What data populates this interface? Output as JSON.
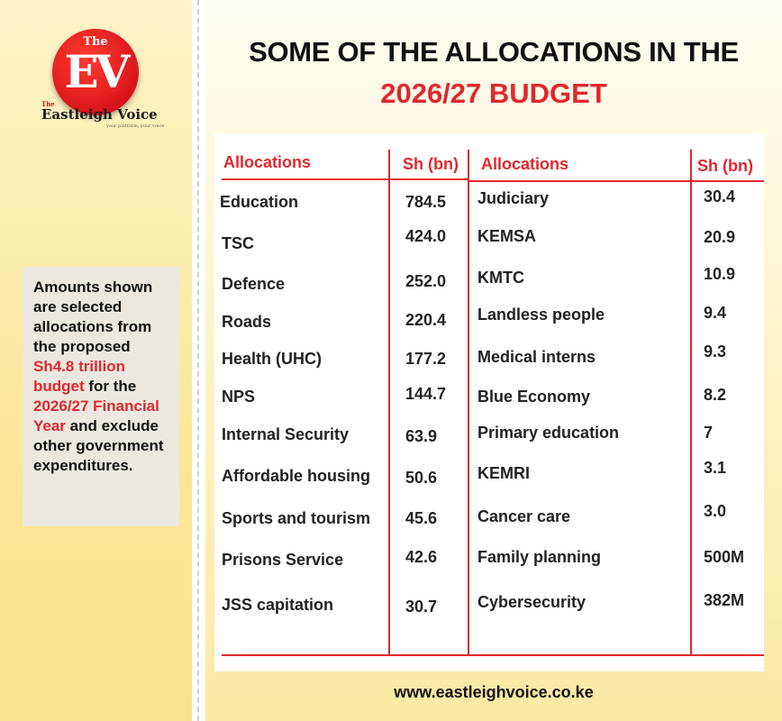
{
  "brand": {
    "logo_the": "The",
    "logo_letters": "EV",
    "small_the": "The",
    "name": "Eastleigh Voice",
    "tagline": "your platform, your voice"
  },
  "note": {
    "text_before": "Amounts shown are selected allocations from the proposed ",
    "highlight": "Sh4.8 trillion budget",
    "text_middle": " for the ",
    "highlight2": "2026/27 Financial Year",
    "text_after": " and exclude other government expenditures."
  },
  "title": {
    "line1": "SOME OF THE ALLOCATIONS IN THE",
    "line2": "2026/27 BUDGET"
  },
  "table": {
    "headers": {
      "left_allocations": "Allocations",
      "left_amount": "Sh (bn)",
      "right_allocations": "Allocations",
      "right_amount": "Sh (bn)"
    },
    "left": [
      {
        "name": "Education",
        "amount": "784.5"
      },
      {
        "name": "TSC",
        "amount": "424.0"
      },
      {
        "name": "Defence",
        "amount": "252.0"
      },
      {
        "name": "Roads",
        "amount": "220.4"
      },
      {
        "name": "Health (UHC)",
        "amount": "177.2"
      },
      {
        "name": "NPS",
        "amount": "144.7"
      },
      {
        "name": "Internal Security",
        "amount": "63.9"
      },
      {
        "name": "Affordable housing",
        "amount": "50.6"
      },
      {
        "name": "Sports and tourism",
        "amount": "45.6"
      },
      {
        "name": "Prisons Service",
        "amount": "42.6"
      },
      {
        "name": "JSS capitation",
        "amount": "30.7"
      }
    ],
    "right": [
      {
        "name": "Judiciary",
        "amount": "30.4"
      },
      {
        "name": "KEMSA",
        "amount": "20.9"
      },
      {
        "name": "KMTC",
        "amount": "10.9"
      },
      {
        "name": "Landless people",
        "amount": "9.4"
      },
      {
        "name": "Medical interns",
        "amount": "9.3"
      },
      {
        "name": "Blue Economy",
        "amount": "8.2"
      },
      {
        "name": "Primary education",
        "amount": "7"
      },
      {
        "name": "KEMRI",
        "amount": "3.1"
      },
      {
        "name": "Cancer care",
        "amount": "3.0"
      },
      {
        "name": "Family planning",
        "amount": "500M"
      },
      {
        "name": "Cybersecurity",
        "amount": "382M"
      }
    ]
  },
  "website": "www.eastleighvoice.co.ke",
  "colors": {
    "accent_red": "#e0282e",
    "sidebar_yellow": "#fbe79a",
    "text_dark": "#111111"
  }
}
